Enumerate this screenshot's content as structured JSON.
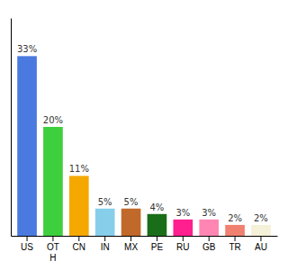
{
  "chart_data": {
    "type": "bar",
    "categories": [
      "US",
      "OT\nH",
      "CN",
      "IN",
      "MX",
      "PE",
      "RU",
      "GB",
      "TR",
      "AU"
    ],
    "values": [
      33,
      20,
      11,
      5,
      5,
      4,
      3,
      3,
      2,
      2
    ],
    "value_labels": [
      "33%",
      "20%",
      "11%",
      "5%",
      "5%",
      "4%",
      "3%",
      "3%",
      "2%",
      "2%"
    ],
    "colors": [
      "#4a7ae0",
      "#3ecf3e",
      "#f5a800",
      "#87ceeb",
      "#c0692a",
      "#1a6e1a",
      "#ff1f8e",
      "#ff85b3",
      "#f08070",
      "#f5f0d8"
    ],
    "ylim": [
      0,
      40
    ],
    "data_labels": true,
    "grid": false,
    "tick_labels": "x"
  }
}
